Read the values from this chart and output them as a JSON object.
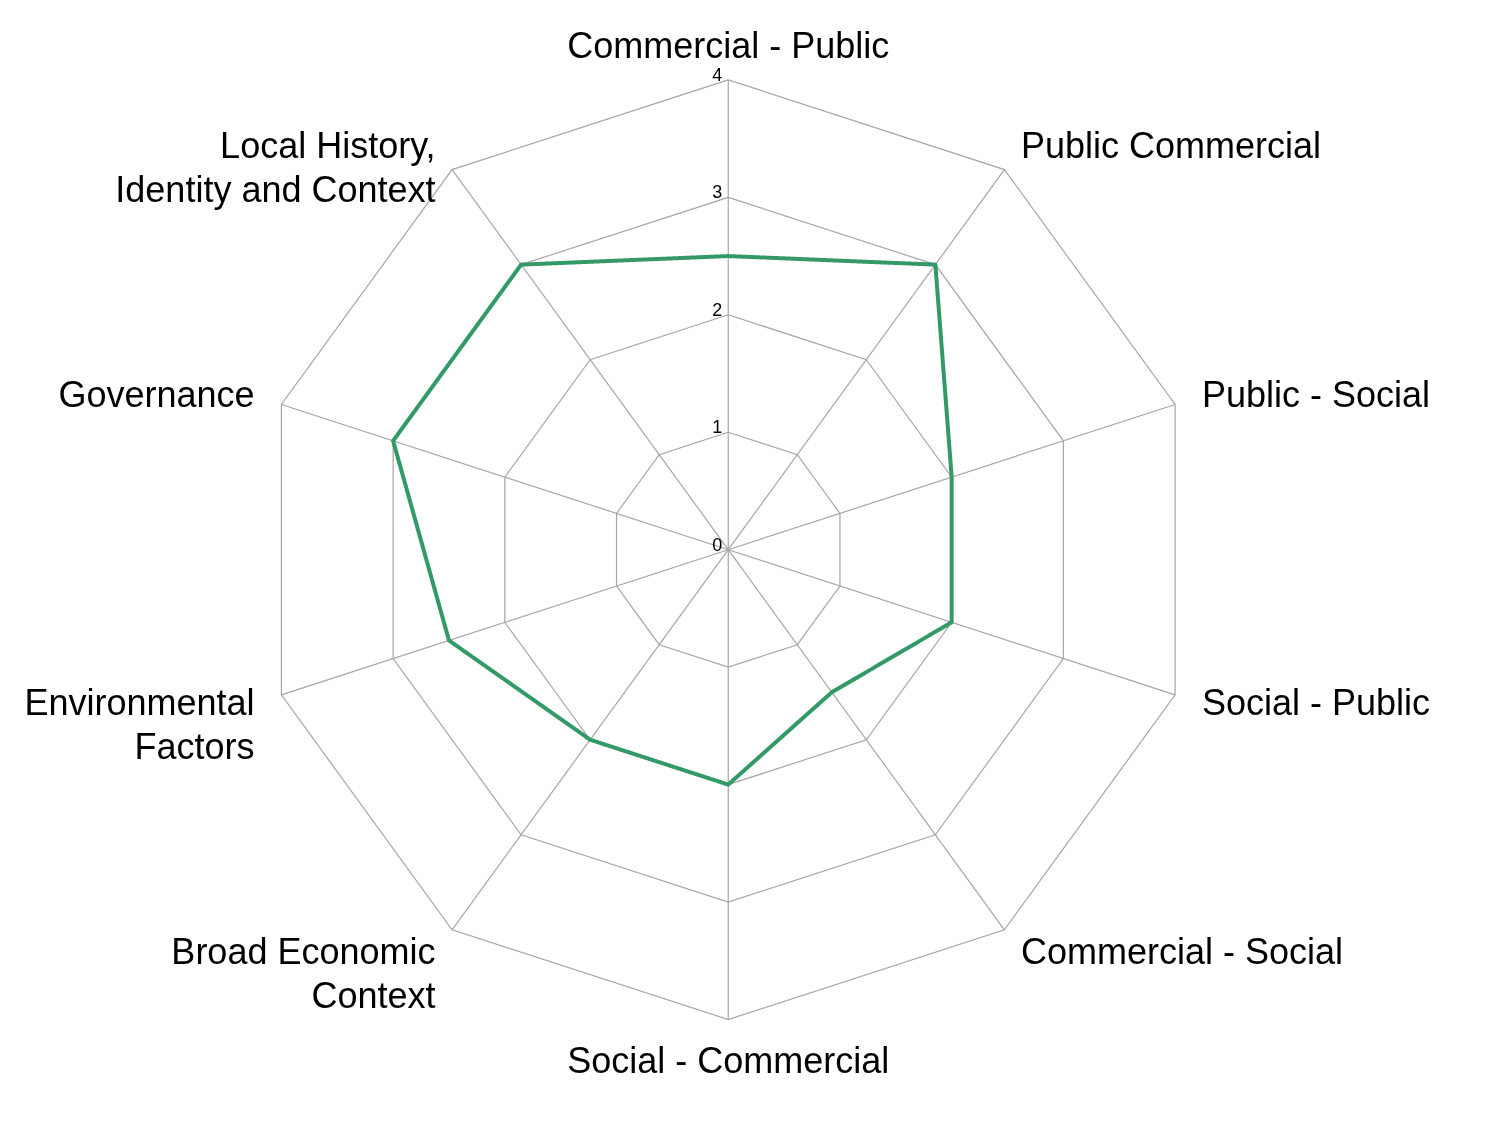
{
  "chart_data": {
    "type": "radar",
    "categories": [
      "Commercial - Public",
      "Public Commercial",
      "Public - Social",
      "Social - Public",
      "Commercial - Social",
      "Social - Commercial",
      "Broad Economic Context",
      "Environmental Factors",
      "Governance",
      "Local History, Identity and Context"
    ],
    "series": [
      {
        "color": "#339966",
        "values": [
          2.5,
          3,
          2,
          2,
          1.5,
          2,
          2,
          2.5,
          3,
          3
        ]
      }
    ],
    "ylim": [
      0,
      4
    ],
    "yticks": [
      0,
      1,
      2,
      3,
      4
    ],
    "grid": true,
    "marker": "none"
  }
}
